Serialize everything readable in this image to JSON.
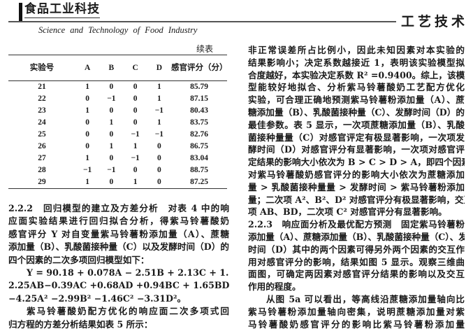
{
  "header": {
    "journal_logo": "食品工业科技",
    "journal_subtitle": "Science and Technology of Food Industry",
    "section": "工艺技术"
  },
  "table": {
    "continued_label": "续表",
    "columns": [
      "实验号",
      "A",
      "B",
      "C",
      "D",
      "感官评分（分）"
    ],
    "rows": [
      [
        "21",
        "1",
        "0",
        "0",
        "1",
        "85.79"
      ],
      [
        "22",
        "0",
        "−1",
        "0",
        "1",
        "87.15"
      ],
      [
        "23",
        "1",
        "0",
        "0",
        "−1",
        "80.43"
      ],
      [
        "24",
        "0",
        "1",
        "0",
        "1",
        "83.75"
      ],
      [
        "25",
        "0",
        "0",
        "−1",
        "−1",
        "82.76"
      ],
      [
        "26",
        "0",
        "1",
        "1",
        "0",
        "86.75"
      ],
      [
        "27",
        "1",
        "0",
        "−1",
        "0",
        "83.04"
      ],
      [
        "28",
        "−1",
        "−1",
        "0",
        "0",
        "88.75"
      ],
      [
        "29",
        "1",
        "0",
        "1",
        "0",
        "87.25"
      ]
    ]
  },
  "left_text": [
    {
      "text": "2.2.2　回归模型的建立及方差分析　对表 4 中的响",
      "cls": ""
    },
    {
      "text": "应面实验结果进行回归拟合分析，得紫马铃薯酸奶",
      "cls": ""
    },
    {
      "text": "感官评分 Y 对自变量紫马铃薯粉添加量（A）、蔗糖",
      "cls": ""
    },
    {
      "text": "添加量（B）、乳酸菌接种量（C）以及发酵时间（D）的",
      "cls": ""
    },
    {
      "text": "四个因素的二次多项回归模型如下：",
      "cls": "end"
    },
    {
      "text": "Y = 90.18 + 0.078A − 2.51B + 2.13C + 1.33D +",
      "cls": "ind"
    },
    {
      "text": "2.25AB−0.39AC +0.68AD +0.94BC + 1.65BD−0.22CD",
      "cls": ""
    },
    {
      "text": "−4.25A² −2.99B² −1.46C² −3.31D²。",
      "cls": "end"
    },
    {
      "text": "紫马铃薯酸奶配方优化的响应面二次多项式回",
      "cls": "ind"
    },
    {
      "text": "归方程的方差分析结果如表 5 所示：",
      "cls": "end"
    }
  ],
  "right_text": [
    {
      "text": "非正常误差所占比例小，因此未知因素对本实验的",
      "cls": ""
    },
    {
      "text": "结果影响小；决定系数越接近 1，表明该实验模型拟",
      "cls": ""
    },
    {
      "text": "合度越好，本实验决定系数 R² =0.9400。综上，该模",
      "cls": ""
    },
    {
      "text": "型能较好地拟合、分析紫马铃薯酸奶工艺配方优化",
      "cls": ""
    },
    {
      "text": "实验，可合理正确地预测紫马铃薯粉添加量（A）、蔗",
      "cls": ""
    },
    {
      "text": "糖添加量（B）、乳酸菌接种量（C）、发酵时间（D）的",
      "cls": ""
    },
    {
      "text": "最佳参数。表 5 显示，一次项蔗糖添加量（B）、乳酸",
      "cls": ""
    },
    {
      "text": "菌接种量量（C）对感官评定有极显著影响，一次项发",
      "cls": ""
    },
    {
      "text": "酵时间（D）对感官评分有显著影响，一次项对感官评",
      "cls": ""
    },
    {
      "text": "定结果的影响大小依次为 B > C > D > A，即四个因素",
      "cls": ""
    },
    {
      "text": "对紫马铃薯酸奶感官评分的影响大小依次为蔗糖添加",
      "cls": ""
    },
    {
      "text": "量 > 乳酸菌接种量量 > 发酵时间 > 紫马铃薯粉添加",
      "cls": ""
    },
    {
      "text": "量；二次项 A²、B²、D² 对感官评分有极显著影响，交互",
      "cls": ""
    },
    {
      "text": "项 AB、BD，二次项 C² 对感官评分有显著影响。",
      "cls": "end"
    },
    {
      "text": "2.2.3　响应面分析及最优配方预测　固定紫马铃薯粉",
      "cls": ""
    },
    {
      "text": "添加量（A）、蔗糖添加量（B）、乳酸菌接种量（C）、发酵",
      "cls": ""
    },
    {
      "text": "时间（D）其中的两个因素可得另外两个因素的交互作",
      "cls": ""
    },
    {
      "text": "用对感官评分的影响，结果如图 5 显示。观察三维曲",
      "cls": ""
    },
    {
      "text": "面图，可确定两因素对感官评分结果的影响以及交互",
      "cls": ""
    },
    {
      "text": "作用的程度。",
      "cls": "end"
    },
    {
      "text": "从图 5a 可以看出，等高线沿蔗糖添加量轴向比",
      "cls": "ind"
    },
    {
      "text": "紫马铃薯粉添加量轴向密集，说明蔗糖添加量对紫",
      "cls": ""
    },
    {
      "text": "马铃薯酸奶感官评分的影响比紫马铃薯粉添加量",
      "cls": ""
    }
  ]
}
